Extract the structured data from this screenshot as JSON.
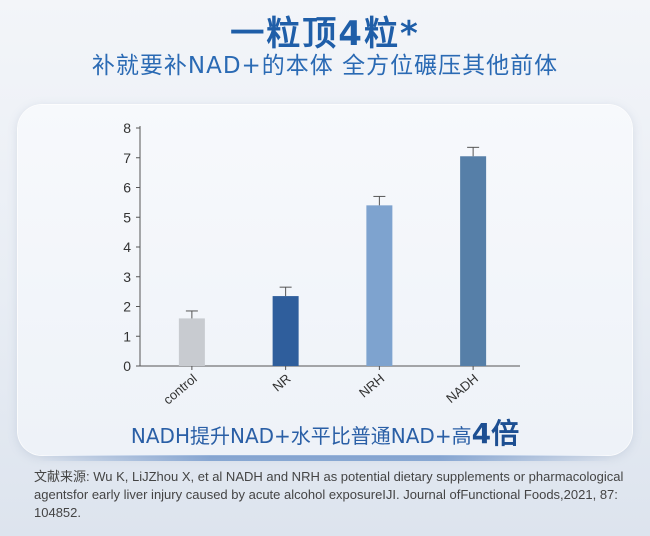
{
  "header": {
    "headline": "一粒顶4粒*",
    "subheadline": "补就要补NAD+的本体 全方位碾压其他前体"
  },
  "chart_data": {
    "type": "bar",
    "categories": [
      "control",
      "NR",
      "NRH",
      "NADH"
    ],
    "values": [
      1.6,
      2.35,
      5.4,
      7.05
    ],
    "errors": [
      0.25,
      0.3,
      0.3,
      0.3
    ],
    "colors": [
      "#c8cbd0",
      "#2f5e9c",
      "#7ea3cf",
      "#567fa8"
    ],
    "ylim": [
      0,
      8
    ],
    "yticks": [
      "0",
      "1",
      "2",
      "3",
      "4",
      "5",
      "6",
      "7",
      "8"
    ],
    "title": "",
    "xlabel": "",
    "ylabel": "",
    "grid": false
  },
  "footnote": {
    "text": "NADH提升NAD+水平比普通NAD+高",
    "emphasis": "4倍"
  },
  "reference": {
    "text": "文献来源: Wu K, LiJZhou X, et al NADH and NRH as potential dietary supplements or pharmacological agentsfor early liver injury caused by acute alcohol exposureIJI. Journal ofFunctional Foods,2021, 87: 104852."
  }
}
